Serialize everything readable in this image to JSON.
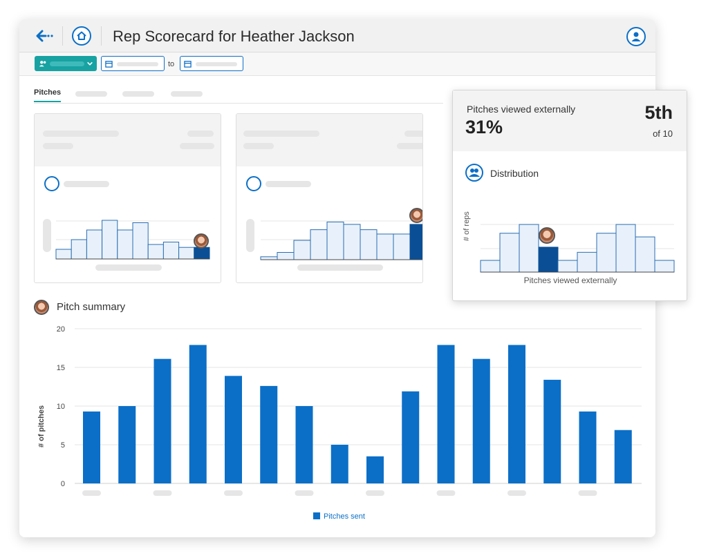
{
  "header": {
    "title": "Rep Scorecard for Heather Jackson"
  },
  "filters": {
    "date_separator": "to"
  },
  "tabs": [
    {
      "label": "Pitches",
      "active": true
    }
  ],
  "metric_popup": {
    "label": "Pitches viewed externally",
    "value": "31%",
    "rank": "5th",
    "rank_of": "of 10",
    "distribution_title": "Distribution",
    "y_label": "# of reps",
    "x_label": "Pitches viewed externally"
  },
  "pitch_summary": {
    "title": "Pitch summary"
  },
  "colors": {
    "primary": "#0b6fc7",
    "highlight": "#0a4f96",
    "teal": "#18a2a2",
    "light_bar": "#e8f1fb"
  },
  "chart_data": {
    "type": "bar",
    "ylabel": "# of pitches",
    "ylim": [
      0,
      20
    ],
    "yticks": [
      0,
      5,
      10,
      15,
      20
    ],
    "grid": true,
    "legend_position": "bottom",
    "series": [
      {
        "name": "Pitches sent",
        "values": [
          9.3,
          10,
          16.1,
          17.9,
          13.9,
          12.6,
          10,
          5,
          3.5,
          11.9,
          17.9,
          16.1,
          17.9,
          13.4,
          9.3,
          6.9
        ]
      }
    ]
  },
  "mini_histograms": [
    {
      "values": [
        2,
        4,
        6,
        8,
        6,
        7.5,
        3,
        3.5,
        2.4,
        2.4
      ],
      "highlight_index": 9
    },
    {
      "values": [
        0.6,
        1.5,
        4,
        6.2,
        7.8,
        7.3,
        6.2,
        5.3,
        5.3,
        7.3
      ],
      "highlight_index": 9
    }
  ],
  "distribution_histogram": {
    "values": [
      1.6,
      5.3,
      6.5,
      3.4,
      1.6,
      2.7,
      5.3,
      6.5,
      4.8,
      1.6
    ],
    "highlight_index": 3
  }
}
